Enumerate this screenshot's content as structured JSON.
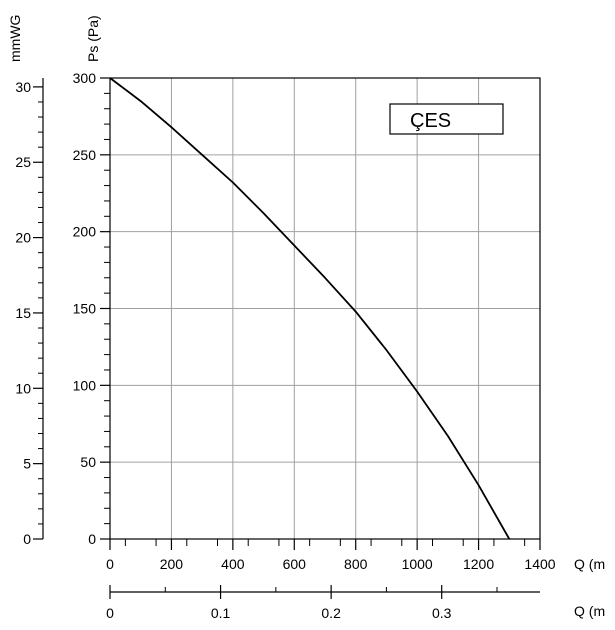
{
  "chart_data": {
    "type": "line",
    "title": "",
    "legend_placement": "top-right",
    "grid": true,
    "colors": {
      "curve": "#000000",
      "grid": "#a0a0a0",
      "axis": "#000000"
    },
    "x_axis": {
      "label": "Q (m",
      "lim": [
        0,
        1400
      ],
      "ticks": [
        0,
        200,
        400,
        600,
        800,
        1000,
        1200,
        1400
      ],
      "tick_labels": [
        "0",
        "200",
        "400",
        "600",
        "800",
        "1000",
        "1200",
        "1400"
      ]
    },
    "x2_axis": {
      "label": "Q (m",
      "lim": [
        0,
        0.3889
      ],
      "ticks": [
        0,
        0.1,
        0.2,
        0.3
      ],
      "tick_labels": [
        "0",
        "0.1",
        "0.2",
        "0.3"
      ]
    },
    "y_axis": {
      "label": "Ps (Pa)",
      "lim": [
        0,
        300
      ],
      "ticks": [
        0,
        50,
        100,
        150,
        200,
        250,
        300
      ],
      "tick_labels": [
        "0",
        "50",
        "100",
        "150",
        "200",
        "250",
        "300"
      ]
    },
    "y2_axis": {
      "label": "mmWG",
      "lim": [
        0,
        30.59
      ],
      "ticks": [
        0,
        5,
        10,
        15,
        20,
        25,
        30
      ],
      "tick_labels": [
        "0",
        "5",
        "10",
        "15",
        "20",
        "25",
        "30"
      ]
    },
    "series": [
      {
        "name": "ÇES",
        "x": [
          0,
          100,
          200,
          300,
          400,
          500,
          600,
          700,
          800,
          900,
          1000,
          1100,
          1200,
          1300
        ],
        "y": [
          300,
          285,
          268,
          250,
          232,
          212,
          191,
          170,
          148,
          123,
          96,
          67,
          35,
          0
        ]
      }
    ]
  }
}
